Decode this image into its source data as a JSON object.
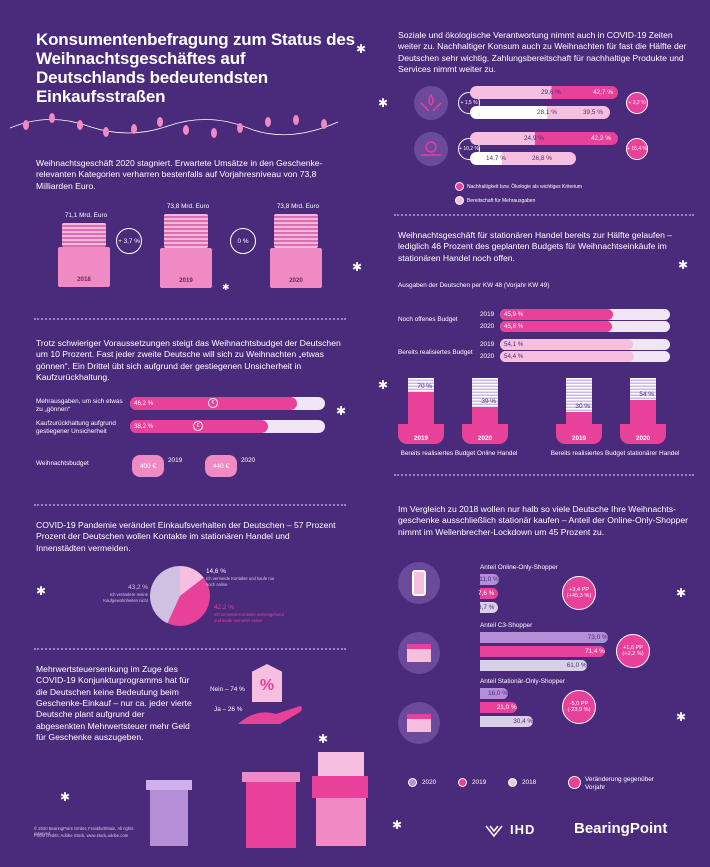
{
  "title": "Konsumentenbefragung zum Status des Weihnachtsgeschäftes auf Deutschlands bedeutendsten Einkaufsstraßen",
  "s1": {
    "text": "Weihnachtsgeschäft 2020 stagniert. Erwartete Umsätze in den Geschenke-relevanten Kategorien verharren bestenfalls auf Vorjahresniveau von 73,8 Milliarden Euro.",
    "gifts": [
      {
        "value": "71,1 Mrd. Euro",
        "year": "2018"
      },
      {
        "value": "73,8 Mrd. Euro",
        "year": "2019"
      },
      {
        "value": "73,8 Mrd. Euro",
        "year": "2020"
      }
    ],
    "changes": [
      "+ 3,7 %",
      "0 %"
    ]
  },
  "s2": {
    "text": "Trotz schwieriger Voraussetzungen steigt das Weihnachtsbudget der Deutschen um 10 Prozent.  Fast jeder zweite Deutsche will sich zu Weihnachten „etwas gönnen“.  Ein Drittel übt sich aufgrund der gestiegenen Unsicherheit in Kaufzurückhaltung.",
    "bars": [
      {
        "label": "Mehrausgaben, um sich etwas zu „gönnen“",
        "value": "46,2 %",
        "pct": 46.2
      },
      {
        "label": "Kaufzurückhaltung aufgrund gestiegener Unsicherheit",
        "value": "38,2 %",
        "pct": 38.2
      }
    ],
    "budget_label": "Weihnachtsbudget",
    "budgets": [
      {
        "amount": "400 €",
        "year": "2019"
      },
      {
        "amount": "440 €",
        "year": "2020"
      }
    ]
  },
  "s3": {
    "text": "COVID-19 Pandemie verändert Einkaufsverhalten der Deutschen – 57 Prozent Prozent der Deutschen wollen Kontakte im stationären Handel und Innenstädten vermeiden.",
    "slices": [
      {
        "value": "14,6 %",
        "note": "Ich vermeide Kontakte und kaufe nur noch online",
        "pct": 14.6,
        "color": "#f6bfe0"
      },
      {
        "value": "42,2 %",
        "note": "Ich vermeide Kontakte weitestgehend und kaufe vermehrt online",
        "pct": 42.2,
        "color": "#e8419a"
      },
      {
        "value": "43,2 %",
        "note": "Ich verändere meine Kaufgewohnheiten nicht",
        "pct": 43.2,
        "color": "#cfc2e0"
      }
    ]
  },
  "s4": {
    "text": "Mehrwertsteuersenkung im Zuge des COVID-19 Konjunkturprogramms hat für die Deutschen keine Bedeutung beim Geschenke-Einkauf – nur ca. jeder vierte Deutsche plant aufgrund der abgesenkten Mehrwertsteuer mehr Geld für Geschenke auszugeben.",
    "no": "Nein – 74 %",
    "yes": "Ja – 26 %",
    "percent_sign": "%"
  },
  "r1": {
    "text": "Soziale und ökologische Verantwortung nimmt auch in COVID-19 Zeiten weiter zu. Nachhaltiger Konsum auch zu Weihnachten für fast die Hälfte der Deutschen sehr wichtig. Zahlungsbereitschaft für nachhaltige Produkte und Services nimmt weiter zu.",
    "groups": [
      {
        "left": "+ 1,5 %",
        "right": "+ 3,2 %",
        "pink": {
          "a": "29,6 %",
          "b": "42,7 %"
        },
        "light": {
          "a": "28,1 %",
          "b": "39,5 %"
        }
      },
      {
        "left": "+ 10,2 %",
        "right": "+ 15,4 %",
        "pink": {
          "a": "24,9 %",
          "b": "42,2 %"
        },
        "light": {
          "a": "14,7 %",
          "b": "26,8 %"
        }
      }
    ],
    "legend": [
      "Nachhaltigkeit bzw. Ökologie als wichtiges Kriterium",
      "Bereitschaft für Mehrausgaben"
    ]
  },
  "r2": {
    "text": "Weihnachtsgeschäft für stationären Handel bereits zur Hälfte gelaufen – lediglich 46 Prozent des geplanten Budgets für Weihnachtseinkäufe im stationären Handel noch offen.",
    "subtitle": "Ausgaben der Deutschen per KW 48 (Vorjahr KW 49)",
    "open_label": "Noch offenes Budget",
    "realized_label": "Bereits realisiertes Budget",
    "rows": [
      {
        "year": "2019",
        "value": "45,9 %",
        "pct": 45.9
      },
      {
        "year": "2020",
        "value": "45,6 %",
        "pct": 45.6
      },
      {
        "year": "2019",
        "value": "54,1 %",
        "pct": 54.1
      },
      {
        "year": "2020",
        "value": "54,4 %",
        "pct": 54.4
      }
    ],
    "purses": [
      {
        "value": "70 %",
        "pct": 70,
        "year": "2019"
      },
      {
        "value": "39 %",
        "pct": 39,
        "year": "2020"
      },
      {
        "value": "30 %",
        "pct": 30,
        "year": "2019"
      },
      {
        "value": "54 %",
        "pct": 54,
        "year": "2020"
      }
    ],
    "captions": [
      "Bereits realisiertes Budget Online Handel",
      "Bereits realisiertes Budget stationärer Handel"
    ]
  },
  "r3": {
    "text": "Im Vergleich zu 2018 wollen nur halb so viele Deutsche Ihre Weihnachts-geschenke ausschließlich stationär kaufen – Anteil der Online-Only-Shopper nimmt im Wellenbrecher-Lockdown um 45 Prozent zu.",
    "groups": [
      {
        "title": "Anteil Online-Only-Shopper",
        "values": [
          {
            "v": "11,0 %",
            "pct": 11.0
          },
          {
            "v": "7,6 %",
            "pct": 7.6
          },
          {
            "v": "8,7 %",
            "pct": 8.7
          }
        ],
        "change": "+3,4 PP\n(+45,3 %)"
      },
      {
        "title": "Anteil C3-Shopper",
        "values": [
          {
            "v": "73,0 %",
            "pct": 73.0
          },
          {
            "v": "71,4 %",
            "pct": 71.4
          },
          {
            "v": "61,0 %",
            "pct": 61.0
          }
        ],
        "change": "+1,6 PP\n(+2,2 %)"
      },
      {
        "title": "Anteil Stationär-Only-Shopper",
        "values": [
          {
            "v": "16,0 %",
            "pct": 16.0
          },
          {
            "v": "21,0 %",
            "pct": 21.0
          },
          {
            "v": "30,4 %",
            "pct": 30.4
          }
        ],
        "change": "-5,0 PP\n(-23,9 %)"
      }
    ],
    "legend": [
      "2020",
      "2019",
      "2018",
      "Veränderung gegenüber Vorjahr"
    ]
  },
  "footer": {
    "copyright": "© 2020 BearingPoint GmbH, Frankfurt/Main. All rights reserved.",
    "photo": "Photo credits: Adobe Stock, www.stock.adobe.com",
    "ihd": "IHD",
    "brand": "BearingPoint"
  },
  "colors": {
    "bg": "#4a2a7a",
    "pink": "#e8419a",
    "light_pink": "#f6bfe0",
    "lilac": "#b58ed8",
    "grey": "#d9d0e5"
  }
}
